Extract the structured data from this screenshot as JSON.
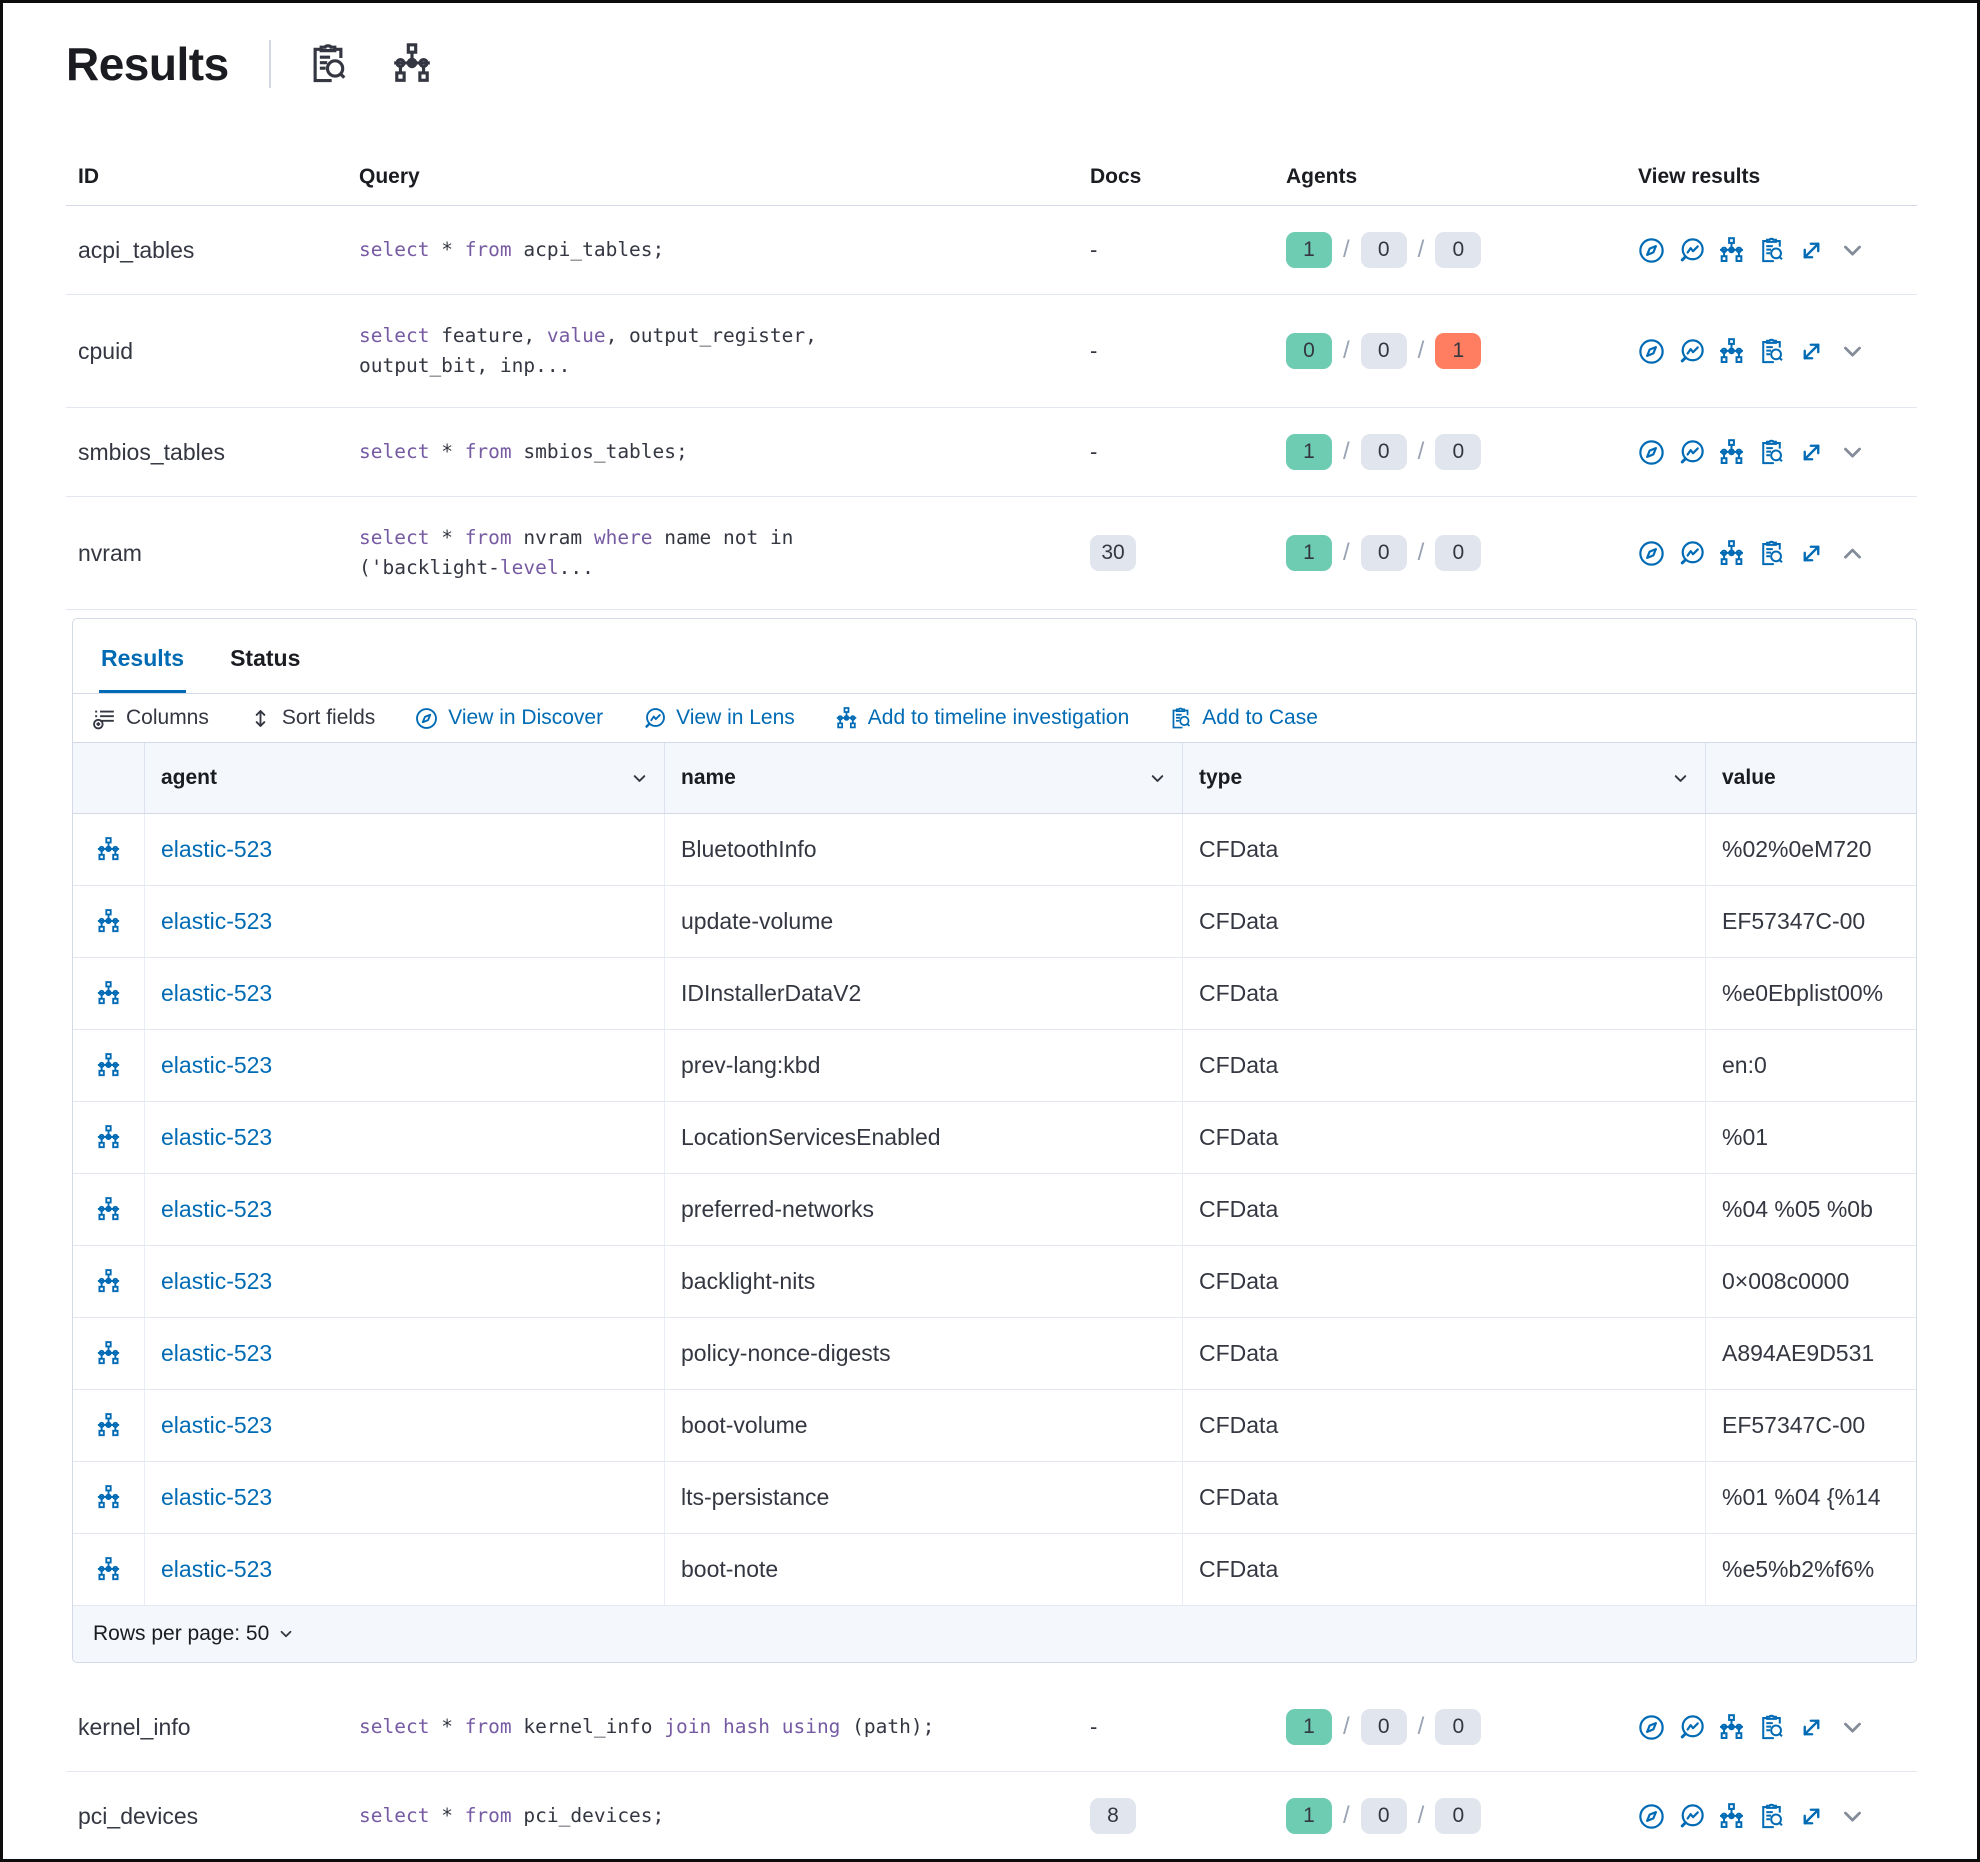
{
  "title": "Results",
  "header_icons": [
    "case",
    "timeline"
  ],
  "colors": {
    "link_blue": "#006bb4",
    "keyword_purple": "#765ba3",
    "success_green": "#6dccb1",
    "danger_red": "#ff7e62",
    "badge_gray": "#e0e5ee",
    "header_bg": "#f4f7fc",
    "border": "#d3dae6"
  },
  "main": {
    "columns": [
      "ID",
      "Query",
      "Docs",
      "Agents",
      "View results"
    ],
    "rows_before_panel": [
      {
        "id": "acpi_tables",
        "query": [
          {
            "text": "select",
            "kw": true
          },
          {
            "text": " * ",
            "kw": false
          },
          {
            "text": "from",
            "kw": true
          },
          {
            "text": " acpi_tables;",
            "kw": false
          }
        ],
        "docs": {
          "text": "-",
          "badge": false
        },
        "agents": [
          {
            "count": "1",
            "variant": "success"
          },
          {
            "count": "0",
            "variant": "default"
          },
          {
            "count": "0",
            "variant": "default"
          }
        ],
        "expanded": false
      },
      {
        "id": "cpuid",
        "query": [
          {
            "text": "select",
            "kw": true
          },
          {
            "text": " feature, ",
            "kw": false
          },
          {
            "text": "value",
            "kw": true
          },
          {
            "text": ", output_register,\noutput_bit, inp...",
            "kw": false
          }
        ],
        "docs": {
          "text": "-",
          "badge": false
        },
        "agents": [
          {
            "count": "0",
            "variant": "success"
          },
          {
            "count": "0",
            "variant": "default"
          },
          {
            "count": "1",
            "variant": "danger"
          }
        ],
        "expanded": false
      },
      {
        "id": "smbios_tables",
        "query": [
          {
            "text": "select",
            "kw": true
          },
          {
            "text": " * ",
            "kw": false
          },
          {
            "text": "from",
            "kw": true
          },
          {
            "text": " smbios_tables;",
            "kw": false
          }
        ],
        "docs": {
          "text": "-",
          "badge": false
        },
        "agents": [
          {
            "count": "1",
            "variant": "success"
          },
          {
            "count": "0",
            "variant": "default"
          },
          {
            "count": "0",
            "variant": "default"
          }
        ],
        "expanded": false
      },
      {
        "id": "nvram",
        "query": [
          {
            "text": "select",
            "kw": true
          },
          {
            "text": " * ",
            "kw": false
          },
          {
            "text": "from",
            "kw": true
          },
          {
            "text": " nvram ",
            "kw": false
          },
          {
            "text": "where",
            "kw": true
          },
          {
            "text": " name not in\n('backlight-",
            "kw": false
          },
          {
            "text": "level",
            "kw": true
          },
          {
            "text": "...",
            "kw": false
          }
        ],
        "docs": {
          "text": "30",
          "badge": true
        },
        "agents": [
          {
            "count": "1",
            "variant": "success"
          },
          {
            "count": "0",
            "variant": "default"
          },
          {
            "count": "0",
            "variant": "default"
          }
        ],
        "expanded": true
      }
    ],
    "rows_after_panel": [
      {
        "id": "kernel_info",
        "query": [
          {
            "text": "select",
            "kw": true
          },
          {
            "text": " * ",
            "kw": false
          },
          {
            "text": "from",
            "kw": true
          },
          {
            "text": " kernel_info ",
            "kw": false
          },
          {
            "text": "join",
            "kw": true
          },
          {
            "text": " ",
            "kw": false
          },
          {
            "text": "hash",
            "kw": true
          },
          {
            "text": " ",
            "kw": false
          },
          {
            "text": "using",
            "kw": true
          },
          {
            "text": " (path);",
            "kw": false
          }
        ],
        "docs": {
          "text": "-",
          "badge": false
        },
        "agents": [
          {
            "count": "1",
            "variant": "success"
          },
          {
            "count": "0",
            "variant": "default"
          },
          {
            "count": "0",
            "variant": "default"
          }
        ],
        "expanded": false
      },
      {
        "id": "pci_devices",
        "query": [
          {
            "text": "select",
            "kw": true
          },
          {
            "text": " * ",
            "kw": false
          },
          {
            "text": "from",
            "kw": true
          },
          {
            "text": " pci_devices;",
            "kw": false
          }
        ],
        "docs": {
          "text": "8",
          "badge": true
        },
        "agents": [
          {
            "count": "1",
            "variant": "success"
          },
          {
            "count": "0",
            "variant": "default"
          },
          {
            "count": "0",
            "variant": "default"
          }
        ],
        "expanded": false
      }
    ]
  },
  "panel": {
    "tabs": [
      {
        "label": "Results",
        "active": true
      },
      {
        "label": "Status",
        "active": false
      }
    ],
    "toolbar": [
      {
        "label": "Columns",
        "icon": "columns",
        "style": "plain"
      },
      {
        "label": "Sort fields",
        "icon": "sort",
        "style": "plain"
      },
      {
        "label": "View in Discover",
        "icon": "discover",
        "style": "link"
      },
      {
        "label": "View in Lens",
        "icon": "lens",
        "style": "link"
      },
      {
        "label": "Add to timeline investigation",
        "icon": "timeline",
        "style": "link"
      },
      {
        "label": "Add to Case",
        "icon": "case",
        "style": "link"
      }
    ],
    "table": {
      "headers": [
        {
          "label": "agent",
          "sortable": true
        },
        {
          "label": "name",
          "sortable": true
        },
        {
          "label": "type",
          "sortable": true
        },
        {
          "label": "value",
          "sortable": false
        }
      ],
      "rows": [
        {
          "agent": "elastic-523",
          "name": "BluetoothInfo",
          "type": "CFData",
          "value": "%02%0eM720"
        },
        {
          "agent": "elastic-523",
          "name": "update-volume",
          "type": "CFData",
          "value": "EF57347C-00"
        },
        {
          "agent": "elastic-523",
          "name": "IDInstallerDataV2",
          "type": "CFData",
          "value": "%e0Ebplist00%"
        },
        {
          "agent": "elastic-523",
          "name": "prev-lang:kbd",
          "type": "CFData",
          "value": "en:0"
        },
        {
          "agent": "elastic-523",
          "name": "LocationServicesEnabled",
          "type": "CFData",
          "value": "%01"
        },
        {
          "agent": "elastic-523",
          "name": "preferred-networks",
          "type": "CFData",
          "value": "%04 %05 %0b"
        },
        {
          "agent": "elastic-523",
          "name": "backlight-nits",
          "type": "CFData",
          "value": "0×008c0000"
        },
        {
          "agent": "elastic-523",
          "name": "policy-nonce-digests",
          "type": "CFData",
          "value": "A894AE9D531"
        },
        {
          "agent": "elastic-523",
          "name": "boot-volume",
          "type": "CFData",
          "value": "EF57347C-00"
        },
        {
          "agent": "elastic-523",
          "name": "lts-persistance",
          "type": "CFData",
          "value": "%01 %04 {%14"
        },
        {
          "agent": "elastic-523",
          "name": "boot-note",
          "type": "CFData",
          "value": "%e5%b2%f6%"
        }
      ]
    },
    "footer": {
      "rows_per_page": "Rows per page: 50"
    }
  }
}
